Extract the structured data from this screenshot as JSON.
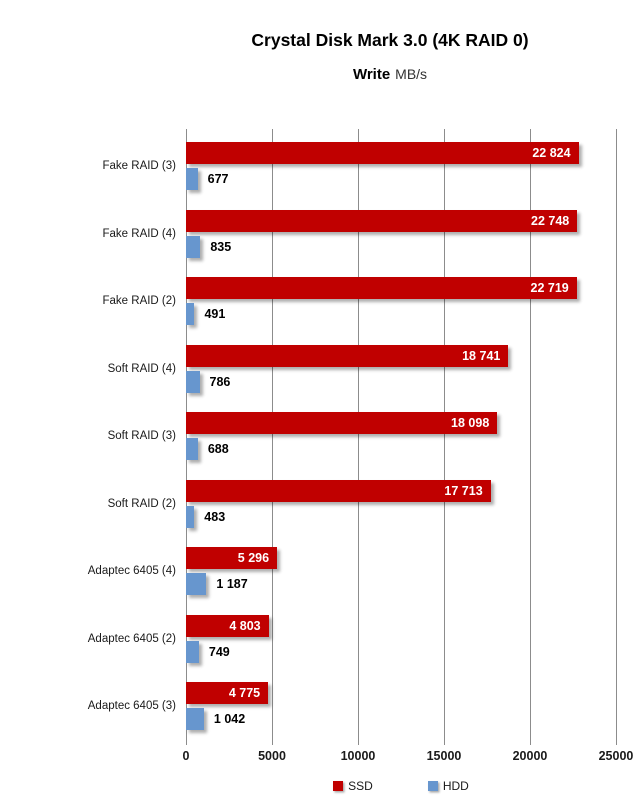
{
  "title": "Crystal Disk Mark 3.0 (4K RAID 0)",
  "subtitle": {
    "bold": "Write",
    "unit": "MB/s"
  },
  "chart_data": {
    "type": "bar",
    "orientation": "horizontal",
    "title": "Crystal Disk Mark 3.0 (4K RAID 0)",
    "subtitle": "Write MB/s",
    "categories": [
      "Fake RAID (3)",
      "Fake RAID (4)",
      "Fake RAID (2)",
      "Soft RAID (4)",
      "Soft RAID (3)",
      "Soft RAID (2)",
      "Adaptec 6405 (4)",
      "Adaptec 6405 (2)",
      "Adaptec 6405 (3)"
    ],
    "series": [
      {
        "name": "SSD",
        "color": "#C00000",
        "values": [
          22824,
          22748,
          22719,
          18741,
          18098,
          17713,
          5296,
          4803,
          4775
        ],
        "labels": [
          "22 824",
          "22 748",
          "22 719",
          "18 741",
          "18 098",
          "17 713",
          "5 296",
          "4 803",
          "4 775"
        ],
        "label_position": "inside-end",
        "label_color": "#FFFFFF"
      },
      {
        "name": "HDD",
        "color": "#6796CE",
        "values": [
          677,
          835,
          491,
          786,
          688,
          483,
          1187,
          749,
          1042
        ],
        "labels": [
          "677",
          "835",
          "491",
          "786",
          "688",
          "483",
          "1 187",
          "749",
          "1 042"
        ],
        "label_position": "outside-end",
        "label_color": "#000000"
      }
    ],
    "xlim": [
      0,
      25000
    ],
    "x_ticks": [
      0,
      5000,
      10000,
      15000,
      20000,
      25000
    ],
    "x_tick_labels": [
      "0",
      "5000",
      "10000",
      "15000",
      "20000",
      "25000"
    ],
    "grid": true,
    "grid_color": "#8C8C8C",
    "legend_position": "bottom"
  }
}
